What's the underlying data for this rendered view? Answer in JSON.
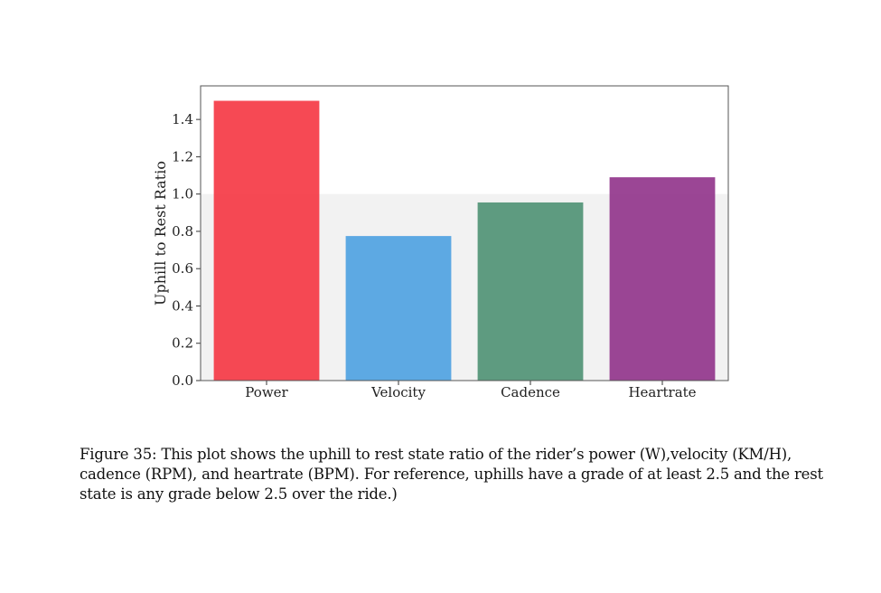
{
  "chart_data": {
    "type": "bar",
    "categories": [
      "Power",
      "Velocity",
      "Cadence",
      "Heartrate"
    ],
    "values": [
      1.5,
      0.775,
      0.955,
      1.09
    ],
    "colors": [
      "#f53a45",
      "#50a3e2",
      "#519476",
      "#93368c"
    ],
    "title": "",
    "xlabel": "",
    "ylabel": "Uphill to Rest Ratio",
    "ylim": [
      0,
      1.58
    ],
    "yticks": [
      "0.0",
      "0.2",
      "0.4",
      "0.6",
      "0.8",
      "1.0",
      "1.2",
      "1.4"
    ],
    "reference_band": [
      0,
      1.0
    ],
    "reference_band_color": "#f2f2f2"
  },
  "caption": "Figure 35: This plot shows the uphill to rest state ratio of the rider’s power (W),velocity (KM/H), cadence (RPM), and heartrate (BPM). For reference, uphills have a grade of at least 2.5 and the rest state is any grade below 2.5 over the ride.)"
}
